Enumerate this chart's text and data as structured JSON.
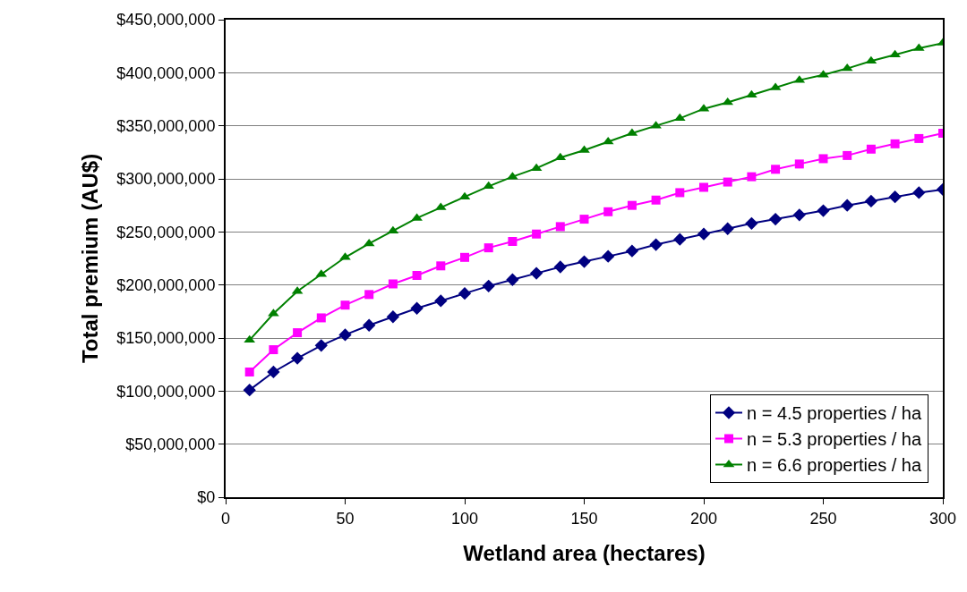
{
  "chart_data": {
    "type": "line",
    "xlabel": "Wetland area (hectares)",
    "ylabel": "Total premium (AU$)",
    "x": [
      10,
      20,
      30,
      40,
      50,
      60,
      70,
      80,
      90,
      100,
      110,
      120,
      130,
      140,
      150,
      160,
      170,
      180,
      190,
      200,
      210,
      220,
      230,
      240,
      250,
      260,
      270,
      280,
      290,
      300
    ],
    "series": [
      {
        "name": "n = 4.5 properties / ha",
        "color": "#000080",
        "marker": "diamond",
        "values": [
          101000000,
          118000000,
          131000000,
          143000000,
          153000000,
          162000000,
          170000000,
          178000000,
          185000000,
          192000000,
          199000000,
          205000000,
          211000000,
          217000000,
          222000000,
          227000000,
          232000000,
          238000000,
          243000000,
          248000000,
          253000000,
          258000000,
          262000000,
          266000000,
          270000000,
          275000000,
          279000000,
          283000000,
          287000000,
          290000000
        ]
      },
      {
        "name": "n = 5.3 properties / ha",
        "color": "#ff00ff",
        "marker": "square",
        "values": [
          118000000,
          139000000,
          155000000,
          169000000,
          181000000,
          191000000,
          201000000,
          209000000,
          218000000,
          226000000,
          235000000,
          241000000,
          248000000,
          255000000,
          262000000,
          269000000,
          275000000,
          280000000,
          287000000,
          292000000,
          297000000,
          302000000,
          309000000,
          314000000,
          319000000,
          322000000,
          328000000,
          333000000,
          338000000,
          343000000
        ]
      },
      {
        "name": "n = 6.6 properties / ha",
        "color": "#008000",
        "marker": "triangle",
        "values": [
          148000000,
          173000000,
          194000000,
          210000000,
          226000000,
          239000000,
          251000000,
          263000000,
          273000000,
          283000000,
          293000000,
          302000000,
          310000000,
          320000000,
          327000000,
          335000000,
          343000000,
          350000000,
          357000000,
          366000000,
          372000000,
          379000000,
          386000000,
          393000000,
          398000000,
          404000000,
          411000000,
          417000000,
          423000000,
          428000000
        ]
      }
    ],
    "xlim": [
      0,
      300
    ],
    "xticks": [
      0,
      50,
      100,
      150,
      200,
      250,
      300
    ],
    "ylim": [
      0,
      450000000
    ],
    "yticks": [
      {
        "value": 0,
        "label": "$0"
      },
      {
        "value": 50000000,
        "label": "$50,000,000"
      },
      {
        "value": 100000000,
        "label": "$100,000,000"
      },
      {
        "value": 150000000,
        "label": "$150,000,000"
      },
      {
        "value": 200000000,
        "label": "$200,000,000"
      },
      {
        "value": 250000000,
        "label": "$250,000,000"
      },
      {
        "value": 300000000,
        "label": "$300,000,000"
      },
      {
        "value": 350000000,
        "label": "$350,000,000"
      },
      {
        "value": 400000000,
        "label": "$400,000,000"
      },
      {
        "value": 450000000,
        "label": "$450,000,000"
      }
    ],
    "grid": "y",
    "legend": "bottom right",
    "line_style": "solid"
  }
}
